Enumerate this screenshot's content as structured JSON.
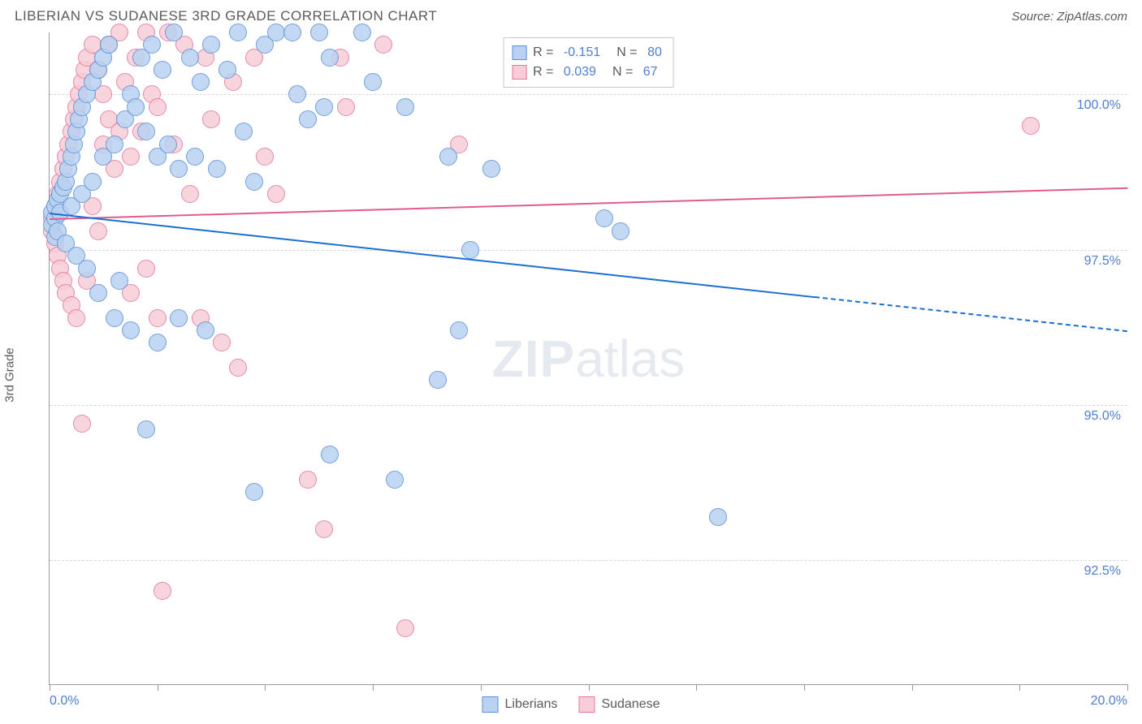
{
  "header": {
    "title": "LIBERIAN VS SUDANESE 3RD GRADE CORRELATION CHART",
    "source": "Source: ZipAtlas.com"
  },
  "ylabel": "3rd Grade",
  "watermark": {
    "zip": "ZIP",
    "atlas": "atlas"
  },
  "axes": {
    "xlim": [
      0,
      20
    ],
    "ylim": [
      90.5,
      101
    ],
    "xticks": [
      0,
      2,
      4,
      6,
      8,
      10,
      12,
      14,
      16,
      18,
      20
    ],
    "xticklabels": {
      "0": "0.0%",
      "20": "20.0%"
    },
    "yticks": [
      92.5,
      95.0,
      97.5,
      100.0
    ],
    "yticklabels": [
      "92.5%",
      "95.0%",
      "97.5%",
      "100.0%"
    ],
    "grid_color": "#d8d8d8",
    "axis_color": "#9a9a9a"
  },
  "series": {
    "liberians": {
      "label": "Liberians",
      "point_fill": "#b9d2f1",
      "point_stroke": "#5b8fd6",
      "line_color": "#1b6fd0",
      "marker_radius": 11,
      "r_value": "-0.151",
      "n_value": "80",
      "trend": {
        "x1": 0,
        "y1": 98.1,
        "x2": 20,
        "y2": 96.2,
        "solid_until_x": 14.2
      },
      "points": [
        [
          0.05,
          98.1
        ],
        [
          0.05,
          97.9
        ],
        [
          0.1,
          98.0
        ],
        [
          0.1,
          97.7
        ],
        [
          0.1,
          98.2
        ],
        [
          0.15,
          98.3
        ],
        [
          0.15,
          97.8
        ],
        [
          0.2,
          98.1
        ],
        [
          0.2,
          98.4
        ],
        [
          0.25,
          98.5
        ],
        [
          0.3,
          98.6
        ],
        [
          0.3,
          97.6
        ],
        [
          0.35,
          98.8
        ],
        [
          0.4,
          99.0
        ],
        [
          0.4,
          98.2
        ],
        [
          0.45,
          99.2
        ],
        [
          0.5,
          99.4
        ],
        [
          0.5,
          97.4
        ],
        [
          0.55,
          99.6
        ],
        [
          0.6,
          99.8
        ],
        [
          0.6,
          98.4
        ],
        [
          0.7,
          100.0
        ],
        [
          0.7,
          97.2
        ],
        [
          0.8,
          100.2
        ],
        [
          0.8,
          98.6
        ],
        [
          0.9,
          100.4
        ],
        [
          0.9,
          96.8
        ],
        [
          1.0,
          100.6
        ],
        [
          1.0,
          99.0
        ],
        [
          1.1,
          100.8
        ],
        [
          1.2,
          99.2
        ],
        [
          1.2,
          96.4
        ],
        [
          1.3,
          97.0
        ],
        [
          1.4,
          99.6
        ],
        [
          1.5,
          100.0
        ],
        [
          1.5,
          96.2
        ],
        [
          1.6,
          99.8
        ],
        [
          1.7,
          100.6
        ],
        [
          1.8,
          99.4
        ],
        [
          1.8,
          94.6
        ],
        [
          1.9,
          100.8
        ],
        [
          2.0,
          99.0
        ],
        [
          2.0,
          96.0
        ],
        [
          2.1,
          100.4
        ],
        [
          2.2,
          99.2
        ],
        [
          2.3,
          101.0
        ],
        [
          2.4,
          98.8
        ],
        [
          2.4,
          96.4
        ],
        [
          2.6,
          100.6
        ],
        [
          2.7,
          99.0
        ],
        [
          2.8,
          100.2
        ],
        [
          2.9,
          96.2
        ],
        [
          3.0,
          100.8
        ],
        [
          3.1,
          98.8
        ],
        [
          3.3,
          100.4
        ],
        [
          3.5,
          101.0
        ],
        [
          3.6,
          99.4
        ],
        [
          3.8,
          98.6
        ],
        [
          3.8,
          93.6
        ],
        [
          4.0,
          100.8
        ],
        [
          4.2,
          101.0
        ],
        [
          4.5,
          101.0
        ],
        [
          4.6,
          100.0
        ],
        [
          4.8,
          99.6
        ],
        [
          5.0,
          101.0
        ],
        [
          5.1,
          99.8
        ],
        [
          5.2,
          94.2
        ],
        [
          5.2,
          100.6
        ],
        [
          5.8,
          101.0
        ],
        [
          6.0,
          100.2
        ],
        [
          6.4,
          93.8
        ],
        [
          6.6,
          99.8
        ],
        [
          7.2,
          95.4
        ],
        [
          7.4,
          99.0
        ],
        [
          7.6,
          96.2
        ],
        [
          7.8,
          97.5
        ],
        [
          8.2,
          98.8
        ],
        [
          10.3,
          98.0
        ],
        [
          10.6,
          97.8
        ],
        [
          12.4,
          93.2
        ]
      ]
    },
    "sudanese": {
      "label": "Sudanese",
      "point_fill": "#f7cdd7",
      "point_stroke": "#e275a0",
      "line_color": "#e05c8f",
      "marker_radius": 11,
      "r_value": "0.039",
      "n_value": "67",
      "trend": {
        "x1": 0,
        "y1": 98.0,
        "x2": 20,
        "y2": 98.5,
        "solid_until_x": 20
      },
      "points": [
        [
          0.05,
          98.0
        ],
        [
          0.05,
          97.8
        ],
        [
          0.1,
          98.2
        ],
        [
          0.1,
          97.6
        ],
        [
          0.15,
          98.4
        ],
        [
          0.15,
          97.4
        ],
        [
          0.2,
          98.6
        ],
        [
          0.2,
          97.2
        ],
        [
          0.25,
          98.8
        ],
        [
          0.25,
          97.0
        ],
        [
          0.3,
          99.0
        ],
        [
          0.3,
          96.8
        ],
        [
          0.35,
          99.2
        ],
        [
          0.4,
          99.4
        ],
        [
          0.4,
          96.6
        ],
        [
          0.45,
          99.6
        ],
        [
          0.5,
          99.8
        ],
        [
          0.5,
          96.4
        ],
        [
          0.55,
          100.0
        ],
        [
          0.6,
          100.2
        ],
        [
          0.6,
          94.7
        ],
        [
          0.65,
          100.4
        ],
        [
          0.7,
          100.6
        ],
        [
          0.7,
          97.0
        ],
        [
          0.8,
          100.8
        ],
        [
          0.8,
          98.2
        ],
        [
          0.9,
          100.4
        ],
        [
          0.9,
          97.8
        ],
        [
          1.0,
          100.0
        ],
        [
          1.0,
          99.2
        ],
        [
          1.1,
          100.8
        ],
        [
          1.1,
          99.6
        ],
        [
          1.2,
          98.8
        ],
        [
          1.3,
          101.0
        ],
        [
          1.3,
          99.4
        ],
        [
          1.4,
          100.2
        ],
        [
          1.5,
          99.0
        ],
        [
          1.5,
          96.8
        ],
        [
          1.6,
          100.6
        ],
        [
          1.7,
          99.4
        ],
        [
          1.8,
          101.0
        ],
        [
          1.8,
          97.2
        ],
        [
          1.9,
          100.0
        ],
        [
          2.0,
          99.8
        ],
        [
          2.0,
          96.4
        ],
        [
          2.1,
          92.0
        ],
        [
          2.2,
          101.0
        ],
        [
          2.3,
          99.2
        ],
        [
          2.5,
          100.8
        ],
        [
          2.6,
          98.4
        ],
        [
          2.8,
          96.4
        ],
        [
          2.9,
          100.6
        ],
        [
          3.0,
          99.6
        ],
        [
          3.2,
          96.0
        ],
        [
          3.4,
          100.2
        ],
        [
          3.5,
          95.6
        ],
        [
          3.8,
          100.6
        ],
        [
          4.0,
          99.0
        ],
        [
          4.2,
          98.4
        ],
        [
          4.8,
          93.8
        ],
        [
          5.1,
          93.0
        ],
        [
          5.4,
          100.6
        ],
        [
          5.5,
          99.8
        ],
        [
          6.2,
          100.8
        ],
        [
          6.6,
          91.4
        ],
        [
          7.6,
          99.2
        ],
        [
          18.2,
          99.5
        ]
      ]
    }
  },
  "stats_labels": {
    "R": "R = ",
    "N": "N = "
  },
  "legend_labels": {
    "liberians": "Liberians",
    "sudanese": "Sudanese"
  },
  "colors": {
    "tick_label": "#4f7fd1",
    "text": "#5a5a5a"
  }
}
